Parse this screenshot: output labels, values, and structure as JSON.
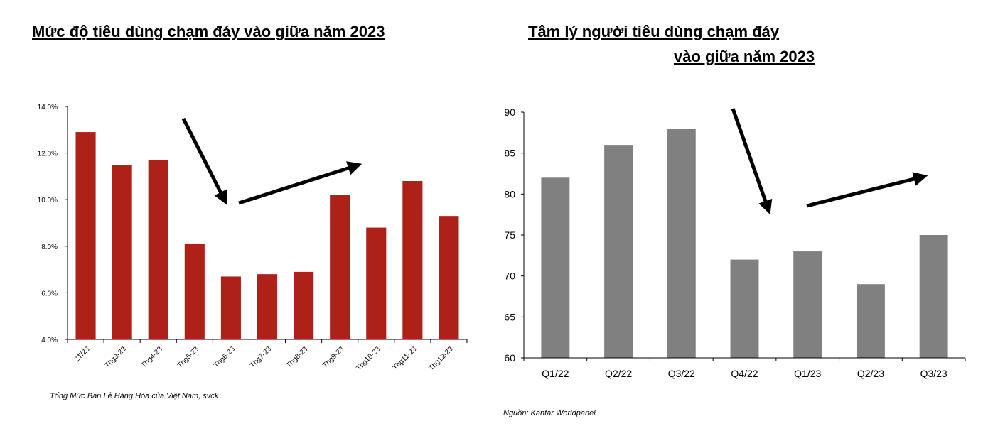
{
  "titles": {
    "left": "Mức độ tiêu dùng chạm đáy vào giữa năm 2023",
    "right_line1": "Tâm lý người tiêu dùng chạm đáy",
    "right_line2": "vào giữa năm 2023"
  },
  "chart_data": [
    {
      "type": "bar",
      "title": "Mức độ tiêu dùng chạm đáy vào giữa năm 2023",
      "categories": [
        "2T/23",
        "Thg3-23",
        "Thg4-23",
        "Thg5-23",
        "Thg6-23",
        "Thg7-23",
        "Thg8-23",
        "Thg9-23",
        "Thg10-23",
        "Thg11-23",
        "Thg12-23"
      ],
      "values": [
        12.9,
        11.5,
        11.7,
        8.1,
        6.7,
        6.8,
        6.9,
        10.2,
        8.8,
        10.8,
        9.3
      ],
      "ylim": [
        4.0,
        14.0
      ],
      "yticks": [
        "4.0%",
        "6.0%",
        "8.0%",
        "10.0%",
        "12.0%",
        "14.0%"
      ],
      "color": "#AE2118",
      "grid": false,
      "annotations": [
        "down-arrow",
        "up-arrow"
      ],
      "source": "Tổng Mức Bán Lẻ Hàng Hóa của Việt Nam, svck"
    },
    {
      "type": "bar",
      "title": "Tâm lý người tiêu dùng chạm đáy vào giữa năm 2023",
      "categories": [
        "Q1/22",
        "Q2/22",
        "Q3/22",
        "Q4/22",
        "Q1/23",
        "Q2/23",
        "Q3/23"
      ],
      "values": [
        82,
        86,
        88,
        72,
        73,
        69,
        75
      ],
      "ylim": [
        60,
        90
      ],
      "yticks": [
        "60",
        "65",
        "70",
        "75",
        "80",
        "85",
        "90"
      ],
      "color": "#808080",
      "grid": false,
      "annotations": [
        "down-arrow",
        "up-arrow"
      ],
      "source": "Nguồn: Kantar Worldpanel"
    }
  ]
}
